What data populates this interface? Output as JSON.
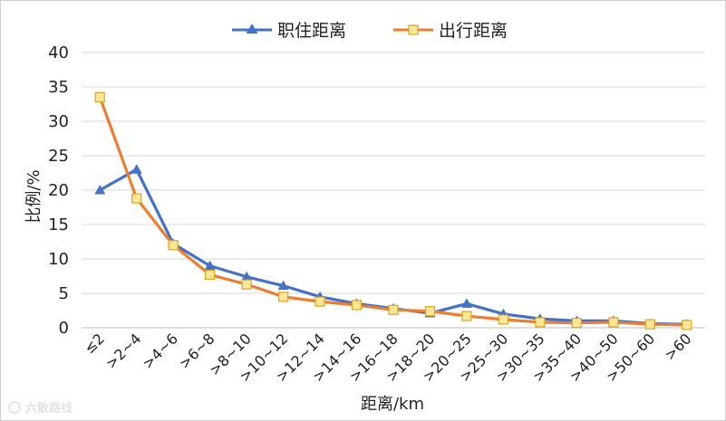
{
  "colors": {
    "series1": "#4472C4",
    "series2": "#ED7D31",
    "series2_marker_fill": "#FFE699",
    "series2_marker_stroke": "#D9A520",
    "grid": "#d9d9d9",
    "axis": "#bfbfbf"
  },
  "watermark": "六散路线",
  "chart_data": {
    "type": "line",
    "title": "",
    "xlabel": "距离/km",
    "ylabel": "比例/%",
    "ylim": [
      0,
      40
    ],
    "yticks": [
      0,
      5,
      10,
      15,
      20,
      25,
      30,
      35,
      40
    ],
    "grid": true,
    "legend_position": "top",
    "categories": [
      "≤2",
      ">2~4",
      ">4~6",
      ">6~8",
      ">8~10",
      ">10~12",
      ">12~14",
      ">14~16",
      ">16~18",
      ">18~20",
      ">20~25",
      ">25~30",
      ">30~35",
      ">35~40",
      ">40~50",
      ">50~60",
      ">60"
    ],
    "series": [
      {
        "name": "职住距离",
        "marker": "triangle",
        "values": [
          20,
          23,
          12.2,
          9,
          7.4,
          6.1,
          4.5,
          3.5,
          2.8,
          2.1,
          3.5,
          2.0,
          1.3,
          1.0,
          1.0,
          0.6,
          0.5
        ]
      },
      {
        "name": "出行距离",
        "marker": "square",
        "values": [
          33.5,
          18.8,
          12.0,
          7.7,
          6.3,
          4.5,
          3.8,
          3.3,
          2.6,
          2.4,
          1.7,
          1.2,
          0.8,
          0.7,
          0.8,
          0.5,
          0.4
        ]
      }
    ]
  }
}
